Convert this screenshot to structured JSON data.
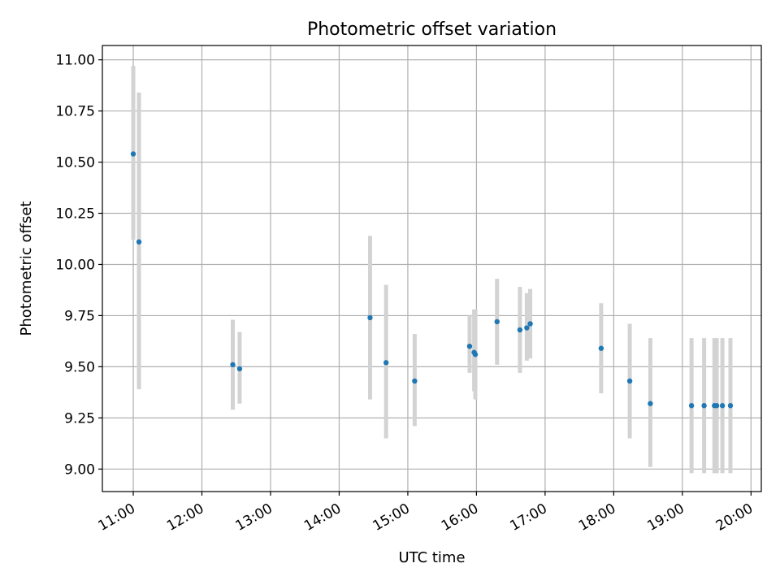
{
  "chart_data": {
    "type": "scatter",
    "title": "Photometric offset variation",
    "xlabel": "UTC time",
    "ylabel": "Photometric offset",
    "x_axis": {
      "unit": "UTC time (HH:MM)",
      "ticks": [
        "11:00",
        "12:00",
        "13:00",
        "14:00",
        "15:00",
        "16:00",
        "17:00",
        "18:00",
        "19:00",
        "20:00"
      ],
      "range": [
        "10:33",
        "20:09"
      ]
    },
    "y_axis": {
      "ticks": [
        "9.00",
        "9.25",
        "9.50",
        "9.75",
        "10.00",
        "10.25",
        "10.50",
        "10.75",
        "11.00"
      ],
      "range": [
        8.89,
        11.07
      ]
    },
    "grid": true,
    "error_bar_color": "#d3d3d3",
    "marker_color": "#1f77b4",
    "series": [
      {
        "x": [
          "11:00",
          "11:05",
          "12:27",
          "12:33",
          "14:27",
          "14:41",
          "15:06",
          "15:54",
          "15:58",
          "15:59",
          "16:18",
          "16:38",
          "16:44",
          "16:47",
          "17:49",
          "18:14",
          "18:32",
          "19:08",
          "19:19",
          "19:28",
          "19:30",
          "19:35",
          "19:42"
        ],
        "y": [
          10.54,
          10.11,
          9.51,
          9.49,
          9.74,
          9.52,
          9.43,
          9.6,
          9.57,
          9.56,
          9.72,
          9.68,
          9.69,
          9.71,
          9.59,
          9.43,
          9.32,
          9.31,
          9.31,
          9.31,
          9.31,
          9.31,
          9.31
        ],
        "y_low": [
          10.12,
          9.39,
          9.29,
          9.32,
          9.34,
          9.15,
          9.21,
          9.47,
          9.38,
          9.34,
          9.51,
          9.47,
          9.53,
          9.54,
          9.37,
          9.15,
          9.01,
          8.98,
          8.98,
          8.98,
          8.98,
          8.98,
          8.98
        ],
        "y_high": [
          10.97,
          10.84,
          9.73,
          9.67,
          10.14,
          9.9,
          9.66,
          9.75,
          9.78,
          9.78,
          9.93,
          9.89,
          9.86,
          9.88,
          9.81,
          9.71,
          9.64,
          9.64,
          9.64,
          9.64,
          9.64,
          9.64,
          9.64
        ]
      }
    ]
  }
}
